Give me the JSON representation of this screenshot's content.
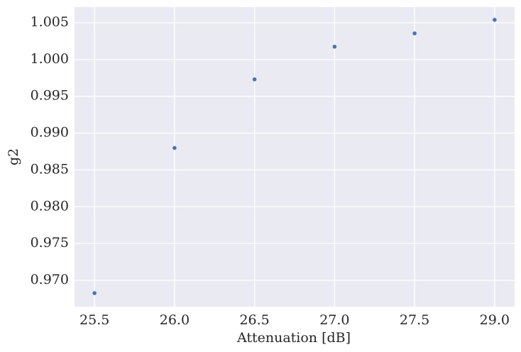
{
  "chart_data": {
    "type": "scatter",
    "xlabel": "Attenuation [dB]",
    "ylabel": "g2",
    "categories": [
      "25.5",
      "26.0",
      "26.5",
      "27.0",
      "27.5",
      "29.0"
    ],
    "series": [
      {
        "color": "#4c72b0",
        "values": [
          0.96826,
          0.98798,
          0.9973,
          1.00174,
          1.00355,
          1.00539
        ]
      }
    ],
    "ylim": [
      0.96643,
      1.00712
    ],
    "yticks": [
      {
        "value": 0.97,
        "label": "0.970"
      },
      0.975,
      {
        "value": 0.98,
        "label": "0.980"
      },
      0.985,
      {
        "value": 0.99,
        "label": "0.990"
      },
      0.995,
      {
        "value": 1.0,
        "label": "1.000"
      },
      1.005
    ],
    "grid": true
  }
}
